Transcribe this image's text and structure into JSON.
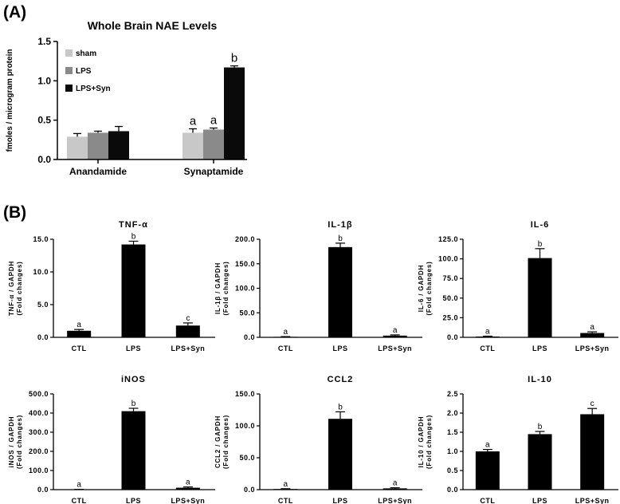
{
  "panel_labels": [
    "(A)",
    "(B)"
  ],
  "chart_data": [
    {
      "type": "bar",
      "title": "Whole Brain NAE Levels",
      "ylabel": "fmoles / microgram protein",
      "xlabel": "",
      "categories": [
        "Anandamide",
        "Synaptamide"
      ],
      "ylim": [
        0,
        1.5
      ],
      "yticks": [
        "0.0",
        "0.5",
        "1.0",
        "1.5"
      ],
      "legend_position": "top-left",
      "grid": false,
      "series": [
        {
          "name": "sham",
          "color": "#c8c8c8",
          "values": [
            0.29,
            0.34
          ],
          "errors": [
            0.04,
            0.05
          ],
          "sig": [
            "",
            "a"
          ]
        },
        {
          "name": "LPS",
          "color": "#8a8a8a",
          "values": [
            0.34,
            0.38
          ],
          "errors": [
            0.02,
            0.02
          ],
          "sig": [
            "",
            "a"
          ]
        },
        {
          "name": "LPS+Syn",
          "color": "#0a0a0a",
          "values": [
            0.36,
            1.17
          ],
          "errors": [
            0.06,
            0.02
          ],
          "sig": [
            "",
            "b"
          ]
        }
      ]
    },
    {
      "type": "bar",
      "title": "TNF-α",
      "ylabel": "TNF-α / GAPDH",
      "ylabel2": "(Fold changes)",
      "categories": [
        "CTL",
        "LPS",
        "LPS+Syn"
      ],
      "values": [
        1.0,
        14.2,
        1.8
      ],
      "errors": [
        0.2,
        0.5,
        0.4
      ],
      "sig": [
        "a",
        "b",
        "c"
      ],
      "ylim": [
        0,
        15
      ],
      "yticks": [
        "0.0",
        "5.0",
        "10.0",
        "15.0"
      ]
    },
    {
      "type": "bar",
      "title": "IL-1β",
      "ylabel": "IL-1β / GAPDH",
      "ylabel2": "(Fold changes)",
      "categories": [
        "CTL",
        "LPS",
        "LPS+Syn"
      ],
      "values": [
        1.0,
        184,
        3.5
      ],
      "errors": [
        0.5,
        8,
        1.5
      ],
      "sig": [
        "a",
        "b",
        "a"
      ],
      "ylim": [
        0,
        200
      ],
      "yticks": [
        "0.0",
        "50.0",
        "100.0",
        "150.0",
        "200.0"
      ]
    },
    {
      "type": "bar",
      "title": "IL-6",
      "ylabel": "IL-6 / GAPDH",
      "ylabel2": "(Fold changes)",
      "categories": [
        "CTL",
        "LPS",
        "LPS+Syn"
      ],
      "values": [
        1.0,
        101,
        5.5
      ],
      "errors": [
        0.5,
        12,
        1.5
      ],
      "sig": [
        "a",
        "b",
        "a"
      ],
      "ylim": [
        0,
        125
      ],
      "yticks": [
        "0.0",
        "25.0",
        "50.0",
        "75.0",
        "100.0",
        "125.0"
      ]
    },
    {
      "type": "bar",
      "title": "iNOS",
      "ylabel": "iNOS / GAPDH",
      "ylabel2": "(Fold changes)",
      "categories": [
        "CTL",
        "LPS",
        "LPS+Syn"
      ],
      "values": [
        1.0,
        410,
        10
      ],
      "errors": [
        0.5,
        15,
        4
      ],
      "sig": [
        "a",
        "b",
        "a"
      ],
      "ylim": [
        0,
        500
      ],
      "yticks": [
        "0.0",
        "100.0",
        "200.0",
        "300.0",
        "400.0",
        "500.0"
      ]
    },
    {
      "type": "bar",
      "title": "CCL2",
      "ylabel": "CCL2 / GAPDH",
      "ylabel2": "(Fold changes)",
      "categories": [
        "CTL",
        "LPS",
        "LPS+Syn"
      ],
      "values": [
        1.0,
        111,
        2.0
      ],
      "errors": [
        0.5,
        11,
        1.0
      ],
      "sig": [
        "a",
        "b",
        "a"
      ],
      "ylim": [
        0,
        150
      ],
      "yticks": [
        "0.0",
        "50.0",
        "100.0",
        "150.0"
      ]
    },
    {
      "type": "bar",
      "title": "IL-10",
      "ylabel": "IL-10 / GAPDH",
      "ylabel2": "(Fold changes)",
      "categories": [
        "CTL",
        "LPS",
        "LPS+Syn"
      ],
      "values": [
        1.0,
        1.45,
        1.97
      ],
      "errors": [
        0.05,
        0.07,
        0.15
      ],
      "sig": [
        "a",
        "b",
        "c"
      ],
      "ylim": [
        0,
        2.5
      ],
      "yticks": [
        "0.0",
        "0.5",
        "1.0",
        "1.5",
        "2.0",
        "2.5"
      ]
    }
  ]
}
